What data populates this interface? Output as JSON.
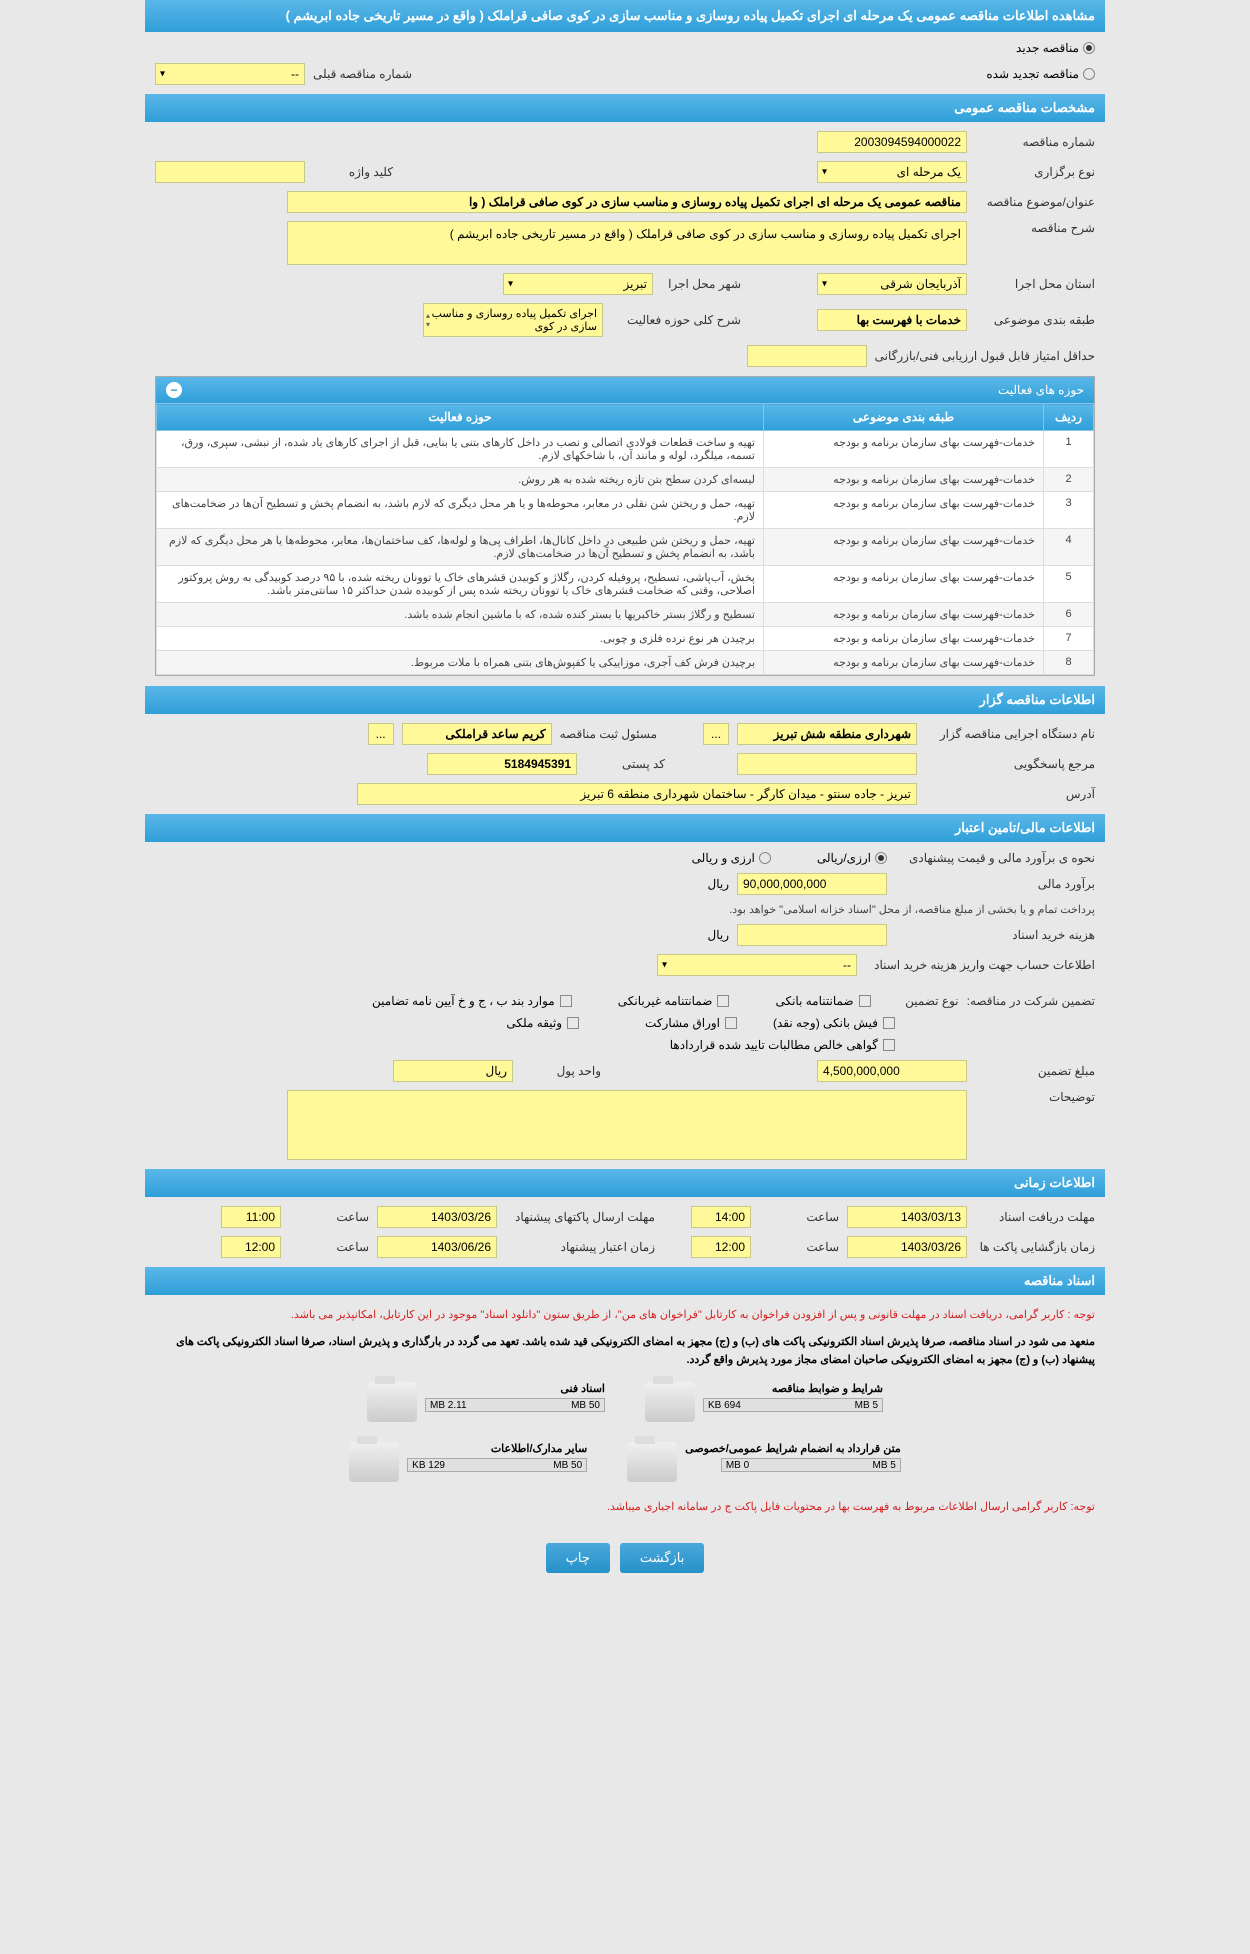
{
  "main_title": "مشاهده اطلاعات مناقصه عمومی یک مرحله ای اجرای تکمیل پیاده روسازی و مناسب سازی در کوی صافی قراملک ( واقع در مسیر تاریخی جاده ابریشم )",
  "tender_type": {
    "new_label": "مناقصه جدید",
    "renewed_label": "مناقصه تجدید شده",
    "prev_number_label": "شماره مناقصه قبلی",
    "prev_number_value": "--"
  },
  "sections": {
    "general": "مشخصات مناقصه عمومی",
    "organizer": "اطلاعات مناقصه گزار",
    "financial": "اطلاعات مالی/تامین اعتبار",
    "timing": "اطلاعات زمانی",
    "documents": "اسناد مناقصه"
  },
  "general": {
    "tender_no_label": "شماره مناقصه",
    "tender_no": "2003094594000022",
    "type_label": "نوع برگزاری",
    "type": "یک مرحله ای",
    "keyword_label": "کلید واژه",
    "keyword": "",
    "subject_label": "عنوان/موضوع مناقصه",
    "subject": "مناقصه عمومی یک مرحله ای اجرای تکمیل پیاده روسازی و مناسب سازی در کوی صافی قراملک ( وا",
    "desc_label": "شرح مناقصه",
    "desc": "اجرای تکمیل پیاده روسازی و مناسب سازی در کوی صافی قراملک ( واقع در مسیر تاریخی جاده ابریشم )",
    "province_label": "استان محل اجرا",
    "province": "آذربایجان شرقی",
    "city_label": "شهر محل اجرا",
    "city": "تبریز",
    "class_label": "طبقه بندی موضوعی",
    "class": "خدمات با فهرست بها",
    "activity_desc_label": "شرح کلی حوزه فعالیت",
    "activity_desc": "اجرای تکمیل پیاده روسازی و مناسب سازی در کوی",
    "min_score_label": "حداقل امتیاز قابل قبول ارزیابی فنی/بازرگانی",
    "min_score": ""
  },
  "activity_table": {
    "title": "حوزه های فعالیت",
    "col_row": "ردیف",
    "col_class": "طبقه بندی موضوعی",
    "col_activity": "حوزه فعالیت",
    "class_text": "خدمات-فهرست بهای سازمان برنامه و بودجه",
    "rows": [
      {
        "n": "1",
        "act": "تهیه و ساخت قطعات فولادی اتصالی و نصب در داخل کارهای بتنی یا بنایی، قبل از اجرای کارهای یاد شده، از نبشی، سپری، ورق، تسمه، میلگرد، لوله و مانند آن، با شاخکهای لازم."
      },
      {
        "n": "2",
        "act": "لیسه‌ای کردن سطح بتن تازه ریخته شده به هر روش."
      },
      {
        "n": "3",
        "act": "تهیه، حمل و ریختن شن نقلی در معابر، محوطه‌ها و یا هر محل دیگری که لازم باشد، به انضمام پخش و تسطیح آن‌ها در ضخامت‌های لازم."
      },
      {
        "n": "4",
        "act": "تهیه، حمل و ریختن شن طبیعی در داخل کانال‌ها، اطراف پی‌ها و لوله‌ها، کف ساختمان‌ها، معابر، محوطه‌ها یا هر محل دیگری که لازم باشد، به انضمام پخش و تسطیح آن‌ها در ضخامت‌های لازم."
      },
      {
        "n": "5",
        "act": "پخش، آب‌پاشی، تسطیح، پروفیله کردن، رگلاژ و کوبیدن قشرهای خاک یا توونان ریخته شده، با ۹۵ درصد کوبیدگی به روش پروکتور اصلاحی، وقتی که ضخامت قشرهای خاک یا توونان ریخته شده پس از کوبیده شدن حداکثر ۱۵ سانتی‌متر باشد."
      },
      {
        "n": "6",
        "act": "تسطیح و رگلاژ بستر خاکبریها یا بستر کنده شده، که با ماشین انجام شده باشد."
      },
      {
        "n": "7",
        "act": "برچیدن هر نوع نرده فلزی و چوبی."
      },
      {
        "n": "8",
        "act": "برچیدن فرش کف آجری، موزاییکی یا کفپوش‌های بتنی همراه با ملات مربوط."
      }
    ]
  },
  "organizer": {
    "org_label": "نام دستگاه اجرایی مناقصه گزار",
    "org": "شهرداری منطقه شش تبریز",
    "reg_officer_label": "مسئول ثبت مناقصه",
    "reg_officer": "کریم ساعد قراملکی",
    "responder_label": "مرجع پاسخگویی",
    "responder": "",
    "postal_label": "کد پستی",
    "postal": "5184945391",
    "address_label": "آدرس",
    "address": "تبریز - جاده سنتو - میدان کارگر - ساختمان شهرداری منطقه 6 تبریز"
  },
  "financial": {
    "method_label": "نحوه ی برآورد مالی و قیمت پیشنهادی",
    "opt_rial": "ارزی/ریالی",
    "opt_currency": "ارزی و ریالی",
    "estimate_label": "برآورد مالی",
    "estimate": "90,000,000,000",
    "unit_rial": "ریال",
    "source_note": "پرداخت تمام و یا بخشی از مبلغ مناقصه، از محل \"اسناد خزانه اسلامی\" خواهد بود.",
    "doc_cost_label": "هزینه خرید اسناد",
    "doc_cost_unit": "ریال",
    "account_label": "اطلاعات حساب جهت واریز هزینه خرید اسناد",
    "account": "--",
    "guarantee_label": "تضمین شرکت در مناقصه:",
    "guarantee_type_label": "نوع تضمین",
    "g_bank": "ضمانتنامه بانکی",
    "g_nonbank": "ضمانتنامه غیربانکی",
    "g_items": "موارد بند ب ، ج و خ آیین نامه تضامین",
    "g_cash": "فیش بانکی (وجه نقد)",
    "g_share": "اوراق مشارکت",
    "g_property": "وثیقه ملکی",
    "g_clearance": "گواهی خالص مطالبات تایید شده قراردادها",
    "amount_label": "مبلغ تضمین",
    "amount": "4,500,000,000",
    "unit_label": "واحد پول",
    "unit_value": "ریال",
    "notes_label": "توضیحات",
    "notes": ""
  },
  "timing": {
    "doc_deadline_label": "مهلت دریافت اسناد",
    "doc_deadline_date": "1403/03/13",
    "doc_deadline_time_label": "ساعت",
    "doc_deadline_time": "14:00",
    "proposal_label": "مهلت ارسال پاکتهای پیشنهاد",
    "proposal_date": "1403/03/26",
    "proposal_time": "11:00",
    "opening_label": "زمان بازگشایی پاکت ها",
    "opening_date": "1403/03/26",
    "opening_time": "12:00",
    "validity_label": "زمان اعتبار پیشنهاد",
    "validity_date": "1403/06/26",
    "validity_time": "12:00"
  },
  "documents": {
    "warning1": "توجه : کاربر گرامی، دریافت اسناد در مهلت قانونی و پس از افزودن فراخوان به کارتابل \"فراخوان های من\"، از طریق ستون \"دانلود اسناد\" موجود در این کارتابل، امکانپذیر می باشد.",
    "warning2": "منعهد می شود در اسناد مناقصه، صرفا پذیرش اسناد الکترونیکی پاکت های (ب) و (ج) مجهز به امضای الکترونیکی قید شده باشد. تعهد می گردد در بارگذاری و پذیرش اسناد، صرفا اسناد الکترونیکی پاکت های پیشنهاد (ب) و (ج) مجهز به امضای الکترونیکی صاحبان امضای مجاز مورد پذیرش واقع گردد.",
    "warning3": "توجه: کاربر گرامی ارسال اطلاعات مربوط به فهرست بها در محتویات فایل پاکت ج در سامانه اجباری میباشد.",
    "folders": [
      {
        "title": "شرایط و ضوابط مناقصه",
        "used": "694 KB",
        "total": "5 MB"
      },
      {
        "title": "اسناد فنی",
        "used": "2.11 MB",
        "total": "50 MB"
      },
      {
        "title": "متن قرارداد به انضمام شرایط عمومی/خصوصی",
        "used": "0 MB",
        "total": "5 MB"
      },
      {
        "title": "سایر مدارک/اطلاعات",
        "used": "129 KB",
        "total": "50 MB"
      }
    ]
  },
  "buttons": {
    "back": "بازگشت",
    "print": "چاپ"
  }
}
